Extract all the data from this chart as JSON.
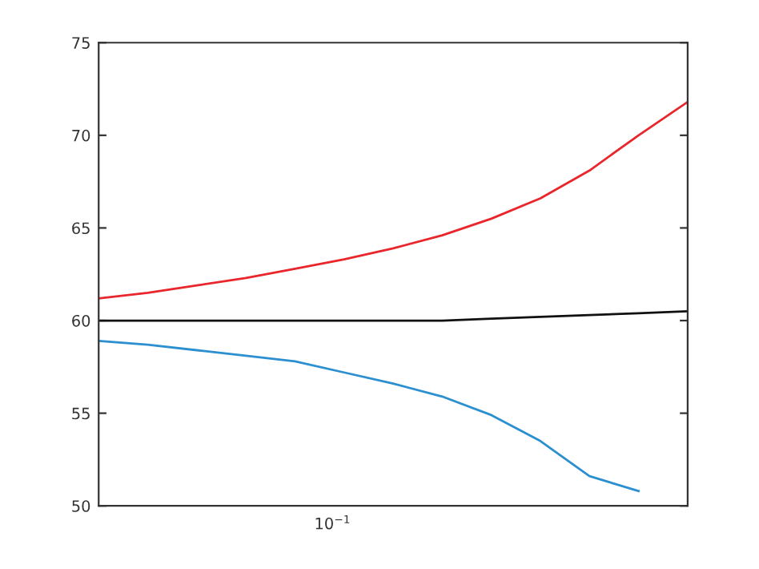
{
  "chart_data": {
    "type": "line",
    "ylim": [
      50,
      75
    ],
    "yticks": [
      50,
      55,
      60,
      65,
      70,
      75
    ],
    "grid": false,
    "marker": "none",
    "line_style": "solid",
    "categories": [
      null,
      null,
      null,
      null,
      null,
      null,
      null,
      null,
      null,
      null,
      null,
      null,
      null
    ],
    "annotations": [
      "10$^{−1}$"
    ],
    "series": [
      {
        "color": "#e8262c",
        "values": [
          61.2,
          61.5,
          61.9,
          62.3,
          62.8,
          63.3,
          63.9,
          64.6,
          65.5,
          66.6,
          68.1,
          70.0,
          71.8
        ]
      },
      {
        "color": "#111111",
        "values": [
          60.0,
          60.0,
          60.0,
          60.0,
          60.0,
          60.0,
          60.0,
          60.0,
          60.1,
          60.2,
          60.3,
          60.4,
          60.5
        ]
      },
      {
        "color": "#2b8fd0",
        "values": [
          58.9,
          58.7,
          58.4,
          58.1,
          57.8,
          57.2,
          56.6,
          55.9,
          54.9,
          53.5,
          51.6,
          50.8,
          null
        ]
      }
    ]
  }
}
